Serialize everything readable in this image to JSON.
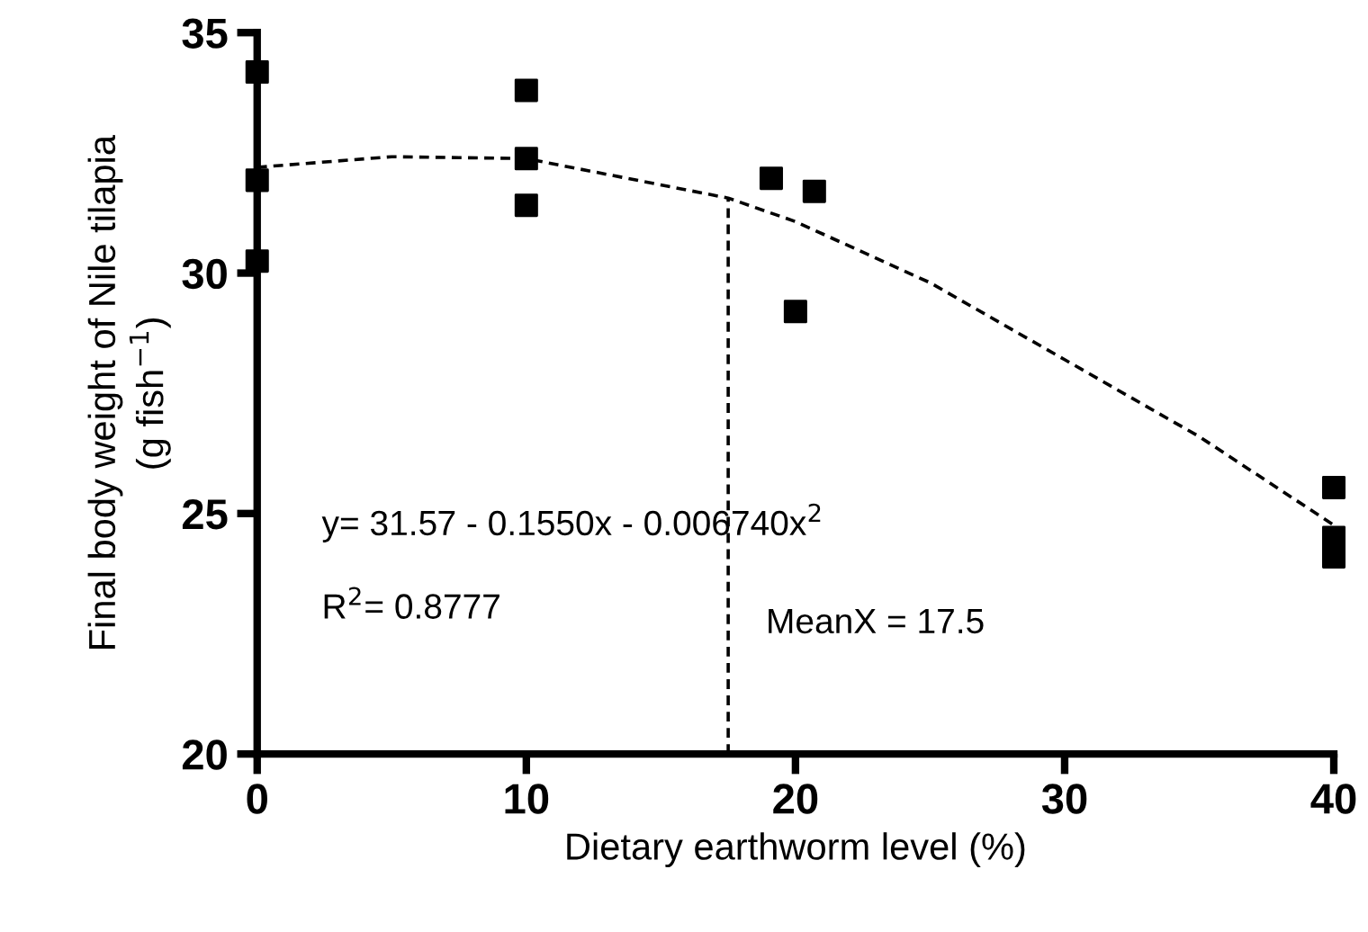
{
  "chart_data": {
    "type": "scatter",
    "xlabel": "Dietary earthworm level (%)",
    "ylabel": "Final body weight of Nile tilapia\n(g fish$^{−1}$)",
    "xlim": [
      0,
      40
    ],
    "xticks": [
      0,
      10,
      20,
      30,
      40
    ],
    "ylim": [
      20,
      35
    ],
    "yticks": [
      20,
      25,
      30,
      35
    ],
    "grid": false,
    "legend": false,
    "marker": "square",
    "series": [
      {
        "color": "#000000",
        "x": [
          0,
          0,
          0,
          10,
          10,
          10,
          19.1,
          20.7,
          20.0,
          40,
          40,
          40
        ],
        "values": [
          34.18,
          31.93,
          30.25,
          33.8,
          32.38,
          31.41,
          31.97,
          31.7,
          29.2,
          25.54,
          24.5,
          24.1
        ]
      },
      {
        "type": "line",
        "color": "#000000",
        "line_style": "dashed",
        "marker": "none",
        "x": [
          0,
          5,
          10,
          17.5,
          20,
          25,
          30,
          35,
          40
        ],
        "values": [
          32.2,
          32.42,
          32.38,
          31.56,
          31.07,
          29.8,
          28.2,
          26.6,
          24.76
        ]
      }
    ],
    "ref_lines": [
      {
        "axis": "x",
        "value": 17.5,
        "label": "MeanX = 17.5",
        "color": "#000000",
        "line_style": "dashed"
      }
    ],
    "annotations": [
      "y= 31.57 - 0.1550x - 0.006740x$^{2}$",
      "R$^{2}$= 0.8777"
    ]
  }
}
